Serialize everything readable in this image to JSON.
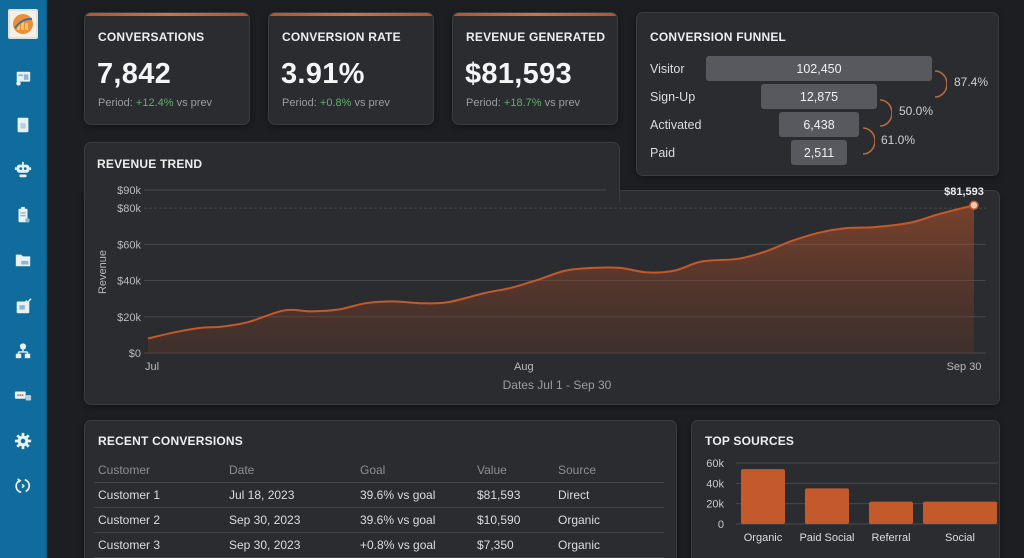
{
  "sidebar": {
    "logo": "app-logo",
    "items": [
      {
        "id": "reports",
        "icon": "report-card-icon"
      },
      {
        "id": "documents",
        "icon": "document-icon"
      },
      {
        "id": "bots",
        "icon": "robot-icon"
      },
      {
        "id": "tasks",
        "icon": "clipboard-icon"
      },
      {
        "id": "files",
        "icon": "folder-icon"
      },
      {
        "id": "approvals",
        "icon": "checked-card-icon"
      },
      {
        "id": "org",
        "icon": "org-chart-icon"
      },
      {
        "id": "messages",
        "icon": "chat-icon"
      },
      {
        "id": "settings",
        "icon": "gear-icon"
      },
      {
        "id": "sync",
        "icon": "sync-icon"
      }
    ]
  },
  "kpis": [
    {
      "title": "CONVERSATIONS",
      "value": "7,842",
      "period_prefix": "Period: ",
      "change": "+12.4%",
      "period_suffix": " vs prev"
    },
    {
      "title": "CONVERSION RATE",
      "value": "3.91%",
      "period_prefix": "Period: ",
      "change": "+0.8%",
      "period_suffix": " vs prev"
    },
    {
      "title": "REVENUE GENERATED",
      "value": "$81,593",
      "period_prefix": "Period: ",
      "change": "+18.7%",
      "period_suffix": " vs prev"
    }
  ],
  "funnel": {
    "title": "CONVERSION FUNNEL",
    "stages": [
      {
        "label": "Visitor",
        "value": "102,450"
      },
      {
        "label": "Sign-Up",
        "value": "12,875"
      },
      {
        "label": "Activated",
        "value": "6,438"
      },
      {
        "label": "Paid",
        "value": "2,511"
      }
    ],
    "rates": [
      "87.4%",
      "50.0%",
      "61.0%"
    ]
  },
  "colors": {
    "accent": "#c4592b",
    "positive": "#5fb16a",
    "sidebar": "#0f6c9c",
    "card": "#2a2c30",
    "background": "#1c1e22"
  },
  "chart_data": [
    {
      "type": "area",
      "title": "REVENUE TREND",
      "xlabel": "Dates Jul 1 - Sep 30",
      "ylabel": "Revenue",
      "x_ticks": [
        "Jul",
        "Aug",
        "Sep 30"
      ],
      "y_ticks": [
        "$0",
        "$20k",
        "$40k",
        "$60k",
        "$80k",
        "$90k"
      ],
      "y_tick_values": [
        0,
        20000,
        40000,
        60000,
        80000,
        90000
      ],
      "ylim": [
        0,
        90000
      ],
      "x": [
        0,
        3,
        6,
        8,
        11,
        15,
        18,
        21,
        24,
        27,
        30,
        33,
        37,
        40,
        43,
        46,
        49,
        52,
        55,
        58,
        61,
        65,
        68,
        71,
        74,
        77,
        80,
        84,
        87,
        91
      ],
      "values": [
        8000,
        11500,
        14000,
        14500,
        17000,
        23500,
        23000,
        24000,
        27500,
        28500,
        27500,
        28000,
        33000,
        36000,
        40500,
        45500,
        47000,
        47000,
        44500,
        45500,
        50500,
        52000,
        56000,
        62000,
        66500,
        69000,
        69500,
        72000,
        76500,
        81593
      ],
      "end_label": "$81,593",
      "grid": true,
      "dashed_reference": 80000
    },
    {
      "type": "bar",
      "title": "TOP SOURCES",
      "categories": [
        "Organic",
        "Paid Social",
        "Referral",
        "Social"
      ],
      "values": [
        54000,
        35000,
        22000,
        22000
      ],
      "y_ticks": [
        "0",
        "20k",
        "40k",
        "60k"
      ],
      "y_tick_values": [
        0,
        20000,
        40000,
        60000
      ],
      "ylim": [
        0,
        60000
      ],
      "grid": true
    }
  ],
  "recent": {
    "title": "RECENT CONVERSIONS",
    "columns": [
      "Customer",
      "Date",
      "Goal",
      "Value",
      "Source"
    ],
    "rows": [
      [
        "Customer 1",
        "Jul 18, 2023",
        "39.6% vs goal",
        "$81,593",
        "Direct"
      ],
      [
        "Customer 2",
        "Sep 30, 2023",
        "39.6% vs goal",
        "$10,590",
        "Organic"
      ],
      [
        "Customer 3",
        "Sep 30, 2023",
        "+0.8% vs goal",
        "$7,350",
        "Organic"
      ]
    ]
  }
}
